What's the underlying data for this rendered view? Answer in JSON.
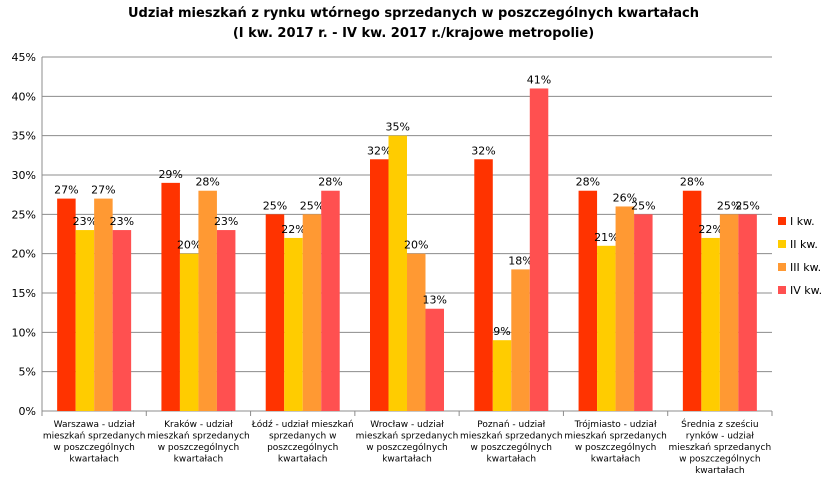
{
  "chart_data": {
    "type": "bar",
    "title": "Udział mieszkań z rynku wtórnego sprzedanych w poszczególnych kwartałach",
    "subtitle": "(I kw. 2017 r. - IV kw. 2017 r./krajowe metropolie)",
    "ylim": [
      0,
      45
    ],
    "yticks": [
      0,
      5,
      10,
      15,
      20,
      25,
      30,
      35,
      40,
      45
    ],
    "ytick_suffix": "%",
    "grid": true,
    "legend_position": "right",
    "categories": [
      "Warszawa - udział mieszkań sprzedanych w poszczególnych kwartałach",
      "Kraków - udział mieszkań sprzedanych w poszczególnych kwartałach",
      "Łódź - udział mieszkań sprzedanych w poszczególnych kwartałach",
      "Wrocław - udział mieszkań sprzedanych w poszczególnych kwartałach",
      "Poznań - udział mieszkań sprzedanych w poszczególnych kwartałach",
      "Trójmiasto - udział mieszkań sprzedanych w poszczególnych kwartałach",
      "Średnia z sześciu rynków - udział mieszkań sprzedanych w poszczególnych kwartałach"
    ],
    "category_lines": [
      [
        "Warszawa - udział",
        "mieszkań sprzedanych",
        "w poszczególnych",
        "kwartałach"
      ],
      [
        "Kraków - udział",
        "mieszkań sprzedanych",
        "w poszczególnych",
        "kwartałach"
      ],
      [
        "Łódź - udział mieszkań",
        "sprzedanych w",
        "poszczególnych",
        "kwartałach"
      ],
      [
        "Wrocław - udział",
        "mieszkań sprzedanych",
        "w poszczególnych",
        "kwartałach"
      ],
      [
        "Poznań - udział",
        "mieszkań sprzedanych",
        "w poszczególnych",
        "kwartałach"
      ],
      [
        "Trójmiasto - udział",
        "mieszkań sprzedanych",
        "w poszczególnych",
        "kwartałach"
      ],
      [
        "Średnia z sześciu",
        "rynków - udział",
        "mieszkań sprzedanych",
        "w poszczególnych",
        "kwartałach"
      ]
    ],
    "series": [
      {
        "name": "I kw.",
        "color": "#ff3300",
        "values": [
          27,
          29,
          25,
          32,
          32,
          28,
          28
        ]
      },
      {
        "name": "II kw.",
        "color": "#ffcc00",
        "values": [
          23,
          20,
          22,
          35,
          9,
          21,
          22
        ]
      },
      {
        "name": "III kw.",
        "color": "#ff9933",
        "values": [
          27,
          28,
          25,
          20,
          18,
          26,
          25
        ]
      },
      {
        "name": "IV kw.",
        "color": "#ff5050",
        "values": [
          23,
          23,
          28,
          13,
          41,
          25,
          25
        ]
      }
    ],
    "data_label_suffix": "%"
  }
}
